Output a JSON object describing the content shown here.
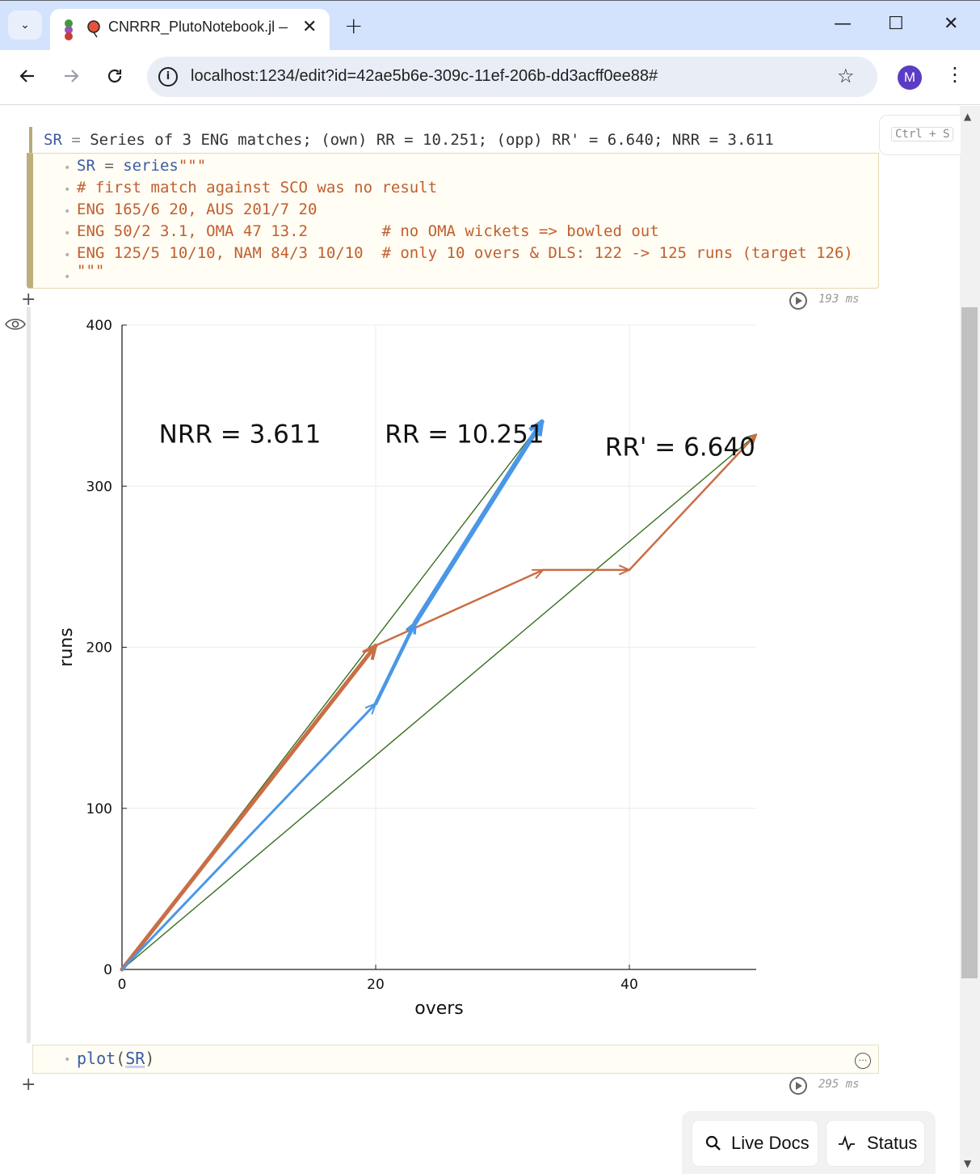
{
  "browser": {
    "tab_title": "CNRRR_PlutoNotebook.jl — ",
    "url": "localhost:1234/edit?id=42ae5b6e-309c-11ef-206b-dd3acff0ee88#",
    "avatar_letter": "M"
  },
  "save_hint": {
    "key1": "Ctrl",
    "plus": "+",
    "key2": "S"
  },
  "cell1": {
    "output_name": "SR",
    "output_eq": " = ",
    "output_text": "Series of 3 ENG matches; (own) RR = 10.251; (opp) RR' = 6.640; NRR = 3.611",
    "code": {
      "l1_name": "SR",
      "l1_eq": " = ",
      "l1_fn": "series",
      "l1_str": "\"\"\"",
      "l2": "# first match against SCO was no result",
      "l3": "ENG 165/6 20, AUS 201/7 20",
      "l4": "ENG 50/2 3.1, OMA 47 13.2        # no OMA wickets => bowled out",
      "l5": "ENG 125/5 10/10, NAM 84/3 10/10  # only 10 overs & DLS: 122 -> 125 runs (target 126)",
      "l6": "\"\"\""
    },
    "runtime": "193 ms"
  },
  "cell2": {
    "code_fn": "plot",
    "code_open": "(",
    "code_arg": "SR",
    "code_close": ")",
    "runtime": "295 ms"
  },
  "chart_data": {
    "type": "line",
    "xlabel": "overs",
    "ylabel": "runs",
    "xlim": [
      0,
      50
    ],
    "ylim": [
      0,
      400
    ],
    "xticks": [
      0,
      20,
      40
    ],
    "yticks": [
      0,
      100,
      200,
      300,
      400
    ],
    "grid": true,
    "colors": {
      "own": "#4a97e6",
      "opp": "#c96e45",
      "rate": "#3a6e1f"
    },
    "own_path": [
      [
        0,
        0
      ],
      [
        20,
        165
      ],
      [
        23.1,
        215
      ],
      [
        33.1,
        340
      ]
    ],
    "opp_path": [
      [
        0,
        0
      ],
      [
        20,
        201
      ],
      [
        33.2,
        248
      ],
      [
        40,
        248
      ],
      [
        50,
        332
      ]
    ],
    "rate_lines": [
      {
        "from": [
          0,
          0
        ],
        "to": [
          33.1,
          340
        ]
      },
      {
        "from": [
          0,
          0
        ],
        "to": [
          50,
          332
        ]
      }
    ],
    "annotations": [
      {
        "text": "NRR = 3.611",
        "x": 9.3,
        "y": 333
      },
      {
        "text": "RR = 10.251",
        "x": 27,
        "y": 333
      },
      {
        "text": "RR' = 6.640",
        "x": 44,
        "y": 325
      }
    ]
  },
  "footer": {
    "live_docs": "Live Docs",
    "status": "Status"
  }
}
